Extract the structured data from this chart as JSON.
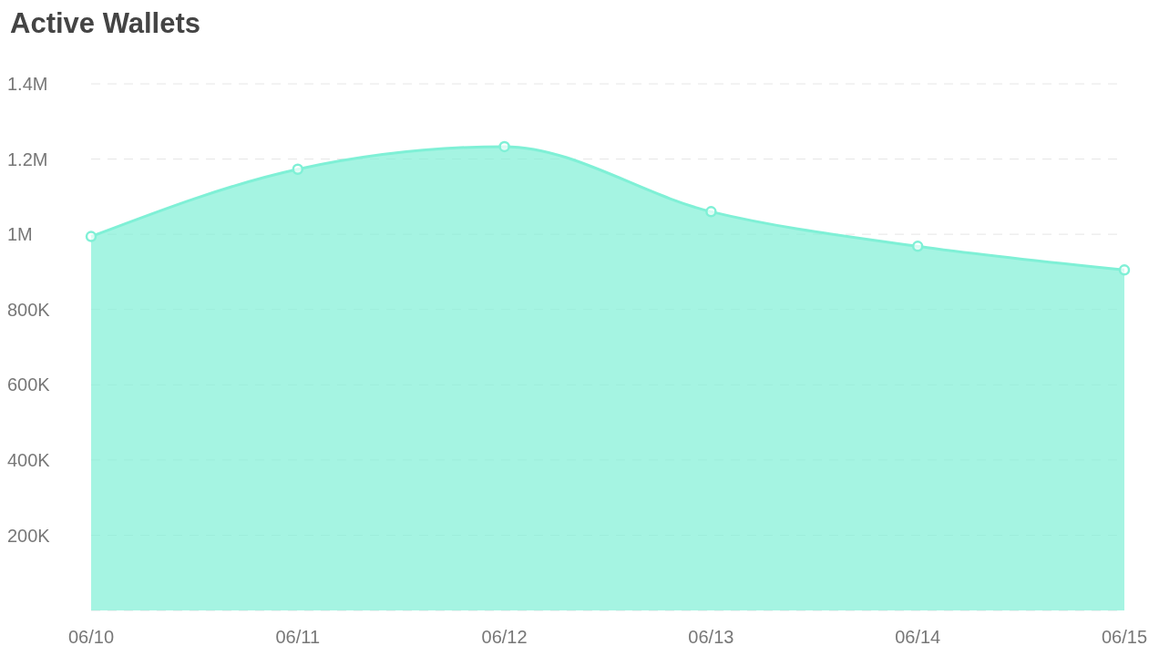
{
  "chart_data": {
    "type": "area",
    "title": "Active Wallets",
    "categories": [
      "06/10",
      "06/11",
      "06/12",
      "06/13",
      "06/14",
      "06/15"
    ],
    "series": [
      {
        "color": "#7ff0d6",
        "values": [
          994000,
          1173000,
          1233000,
          1060000,
          968000,
          905000
        ]
      }
    ],
    "ylim": [
      0,
      1400000
    ],
    "yticks": [
      {
        "value": 200000,
        "label": "200K"
      },
      {
        "value": 400000,
        "label": "400K"
      },
      {
        "value": 600000,
        "label": "600K"
      },
      {
        "value": 800000,
        "label": "800K"
      },
      {
        "value": 1000000,
        "label": "1M"
      },
      {
        "value": 1200000,
        "label": "1.2M"
      },
      {
        "value": 1400000,
        "label": "1.4M"
      }
    ],
    "grid": "y",
    "marker": "circle",
    "legend": false
  }
}
